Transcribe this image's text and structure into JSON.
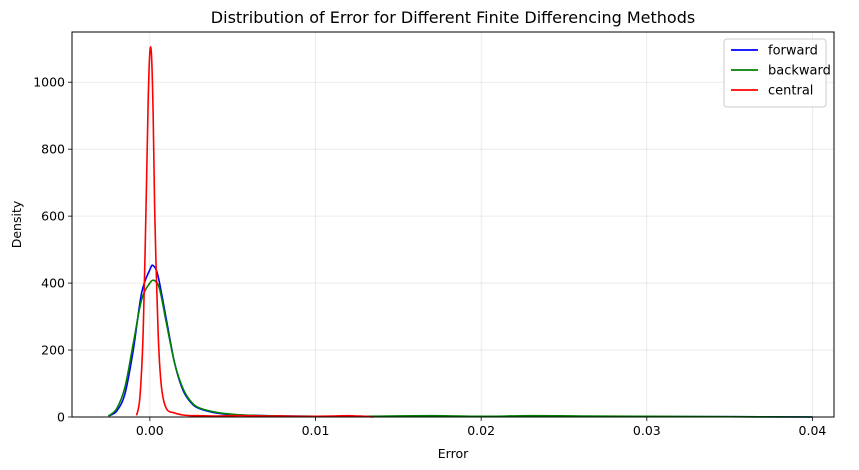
{
  "chart_data": {
    "type": "line",
    "title": "Distribution of Error for Different Finite Differencing Methods",
    "xlabel": "Error",
    "ylabel": "Density",
    "xlim": [
      -0.0047,
      0.0413
    ],
    "ylim": [
      0,
      1150
    ],
    "xticks": [
      0.0,
      0.01,
      0.02,
      0.03,
      0.04
    ],
    "xtick_labels": [
      "0.00",
      "0.01",
      "0.02",
      "0.03",
      "0.04"
    ],
    "yticks": [
      0,
      200,
      400,
      600,
      800,
      1000
    ],
    "ytick_labels": [
      "0",
      "200",
      "400",
      "600",
      "800",
      "1000"
    ],
    "grid": true,
    "legend_position": "top-right",
    "series": [
      {
        "name": "forward",
        "color": "#0000ff",
        "x": [
          -0.0025,
          -0.002,
          -0.0015,
          -0.001,
          -0.0005,
          0.0,
          0.0002,
          0.0005,
          0.001,
          0.0015,
          0.002,
          0.0025,
          0.003,
          0.004,
          0.005,
          0.006,
          0.008,
          0.01,
          0.012,
          0.015,
          0.02,
          0.025,
          0.03,
          0.035,
          0.04
        ],
        "y": [
          3,
          18,
          70,
          200,
          370,
          440,
          452,
          420,
          290,
          160,
          80,
          42,
          25,
          12,
          7,
          5,
          3,
          2,
          1,
          1,
          1,
          1,
          1,
          1,
          0
        ]
      },
      {
        "name": "backward",
        "color": "#008000",
        "x": [
          -0.0025,
          -0.002,
          -0.0015,
          -0.001,
          -0.0005,
          0.0,
          0.0003,
          0.0006,
          0.001,
          0.0015,
          0.002,
          0.0025,
          0.003,
          0.004,
          0.005,
          0.006,
          0.008,
          0.01,
          0.013,
          0.017,
          0.02,
          0.023,
          0.026,
          0.03,
          0.035,
          0.04
        ],
        "y": [
          3,
          25,
          90,
          220,
          350,
          400,
          407,
          380,
          280,
          160,
          85,
          45,
          27,
          14,
          8,
          5,
          3,
          2,
          2,
          4,
          2,
          4,
          3,
          2,
          1,
          0
        ]
      },
      {
        "name": "central",
        "color": "#ff0000",
        "x": [
          -0.0008,
          -0.0006,
          -0.0004,
          -0.0002,
          -0.0001,
          0.0,
          0.0001,
          0.0002,
          0.0003,
          0.0005,
          0.0007,
          0.001,
          0.0015,
          0.002,
          0.0025,
          0.003,
          0.004,
          0.005,
          0.006,
          0.007,
          0.008,
          0.009,
          0.01,
          0.011,
          0.012,
          0.0125,
          0.013,
          0.0135
        ],
        "y": [
          5,
          60,
          260,
          700,
          950,
          1090,
          1080,
          900,
          600,
          250,
          90,
          25,
          12,
          6,
          4,
          4,
          3,
          4,
          4,
          3,
          3,
          2,
          2,
          3,
          4,
          3,
          2,
          0
        ]
      }
    ]
  }
}
